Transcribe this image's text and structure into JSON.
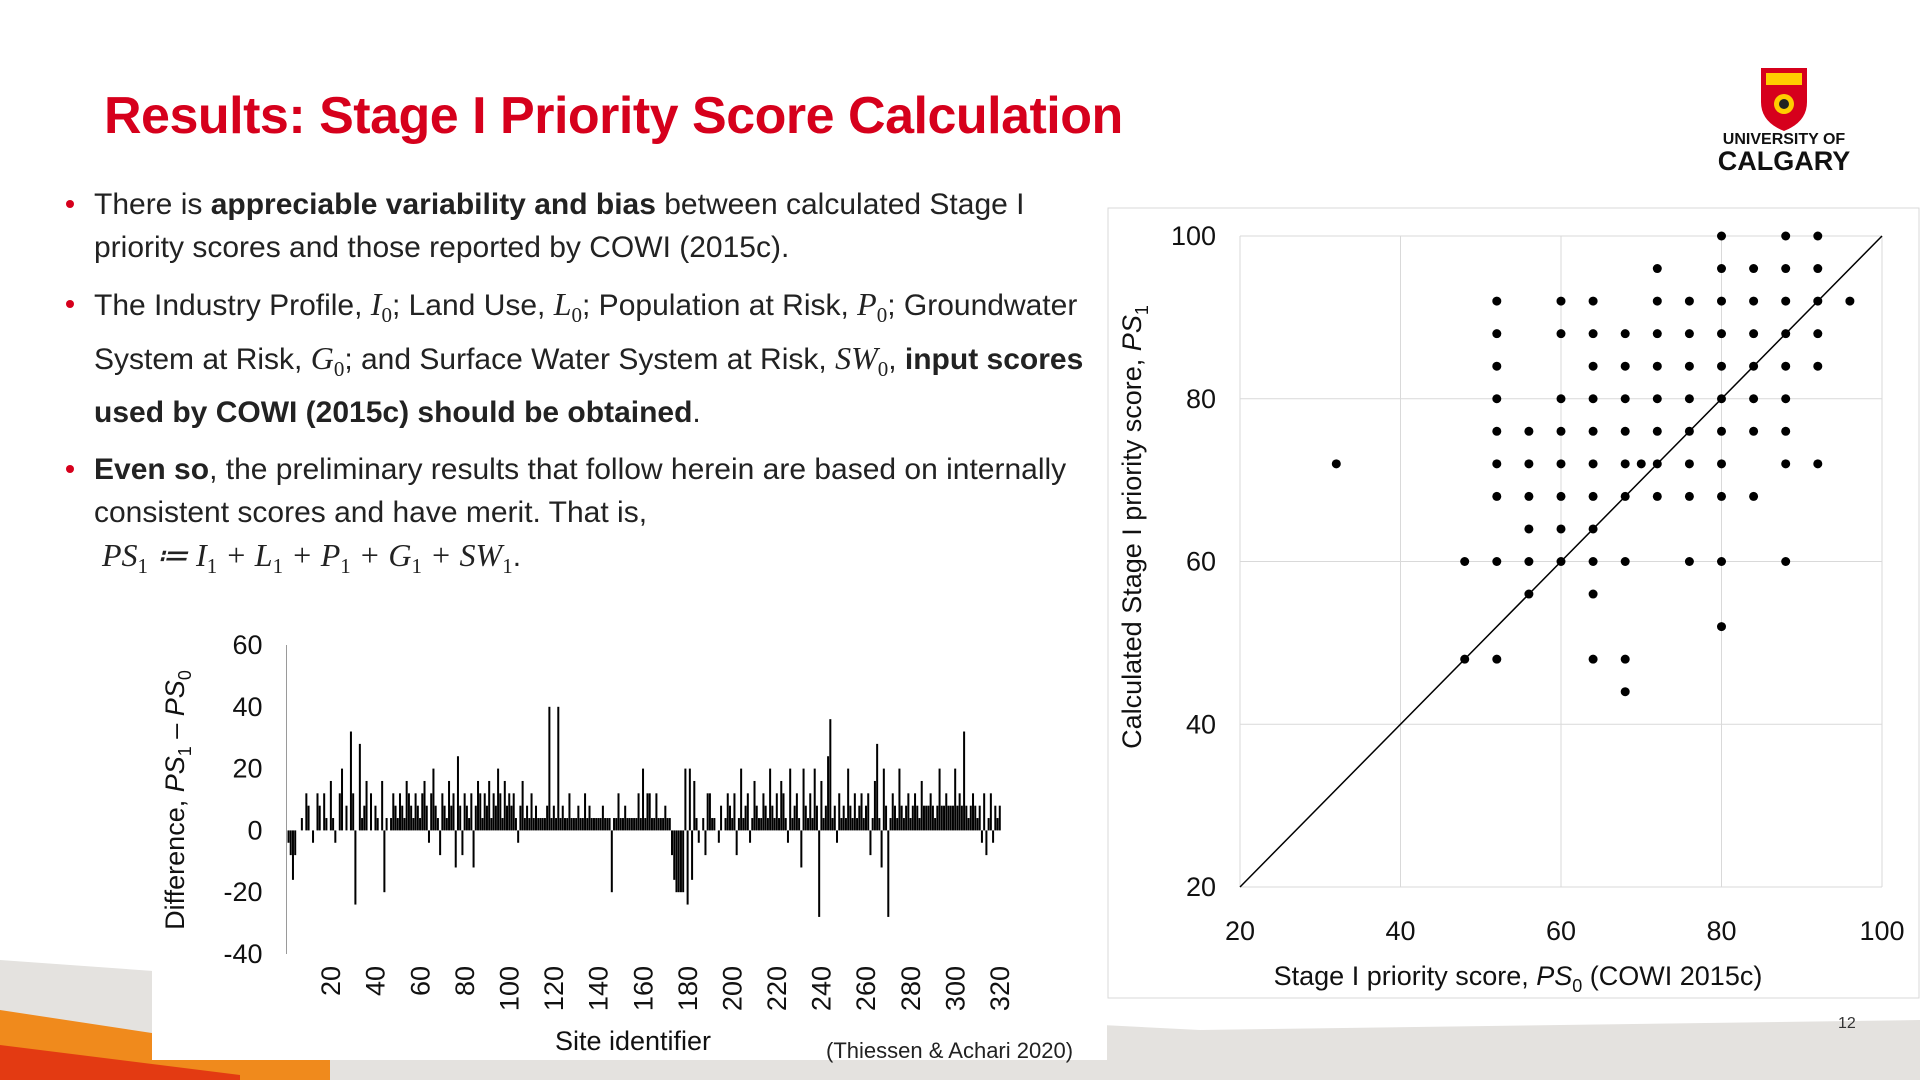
{
  "header": {
    "title": "Results: Stage I Priority Score Calculation",
    "logo_line1": "UNIVERSITY OF",
    "logo_line2": "CALGARY"
  },
  "bullets": [
    {
      "runs": [
        {
          "text": "There is "
        },
        {
          "text": "appreciable variability and bias",
          "style": "bold"
        },
        {
          "text": " between calculated Stage I priority scores and those reported by COWI (2015c)."
        }
      ]
    },
    {
      "runs": [
        {
          "text": "The Industry Profile, "
        },
        {
          "text": "I",
          "style": "math"
        },
        {
          "text": "0",
          "style": "sub"
        },
        {
          "text": "; Land Use, "
        },
        {
          "text": "L",
          "style": "math"
        },
        {
          "text": "0",
          "style": "sub"
        },
        {
          "text": "; Population at Risk, "
        },
        {
          "text": "P",
          "style": "math"
        },
        {
          "text": "0",
          "style": "sub"
        },
        {
          "text": "; Groundwater System at Risk, "
        },
        {
          "text": "G",
          "style": "math"
        },
        {
          "text": "0",
          "style": "sub"
        },
        {
          "text": "; and Surface Water System at Risk, "
        },
        {
          "text": "SW",
          "style": "math"
        },
        {
          "text": "0",
          "style": "sub"
        },
        {
          "text": ", "
        },
        {
          "text": "input scores used by COWI (2015c) should be obtained",
          "style": "bold"
        },
        {
          "text": "."
        }
      ]
    },
    {
      "runs": [
        {
          "text": "Even so",
          "style": "bold"
        },
        {
          "text": ", the preliminary results that follow herein are based on internally consistent scores and have merit. That is,"
        }
      ],
      "formula": [
        {
          "text": "PS",
          "style": "math"
        },
        {
          "text": "1",
          "style": "sub"
        },
        {
          "text": " ≔ I",
          "style": "math"
        },
        {
          "text": "1",
          "style": "sub"
        },
        {
          "text": " + L",
          "style": "math"
        },
        {
          "text": "1",
          "style": "sub"
        },
        {
          "text": " + P",
          "style": "math"
        },
        {
          "text": "1",
          "style": "sub"
        },
        {
          "text": " + G",
          "style": "math"
        },
        {
          "text": "1",
          "style": "sub"
        },
        {
          "text": " + SW",
          "style": "math"
        },
        {
          "text": "1",
          "style": "sub"
        },
        {
          "text": "."
        }
      ]
    }
  ],
  "citation": "(Thiessen & Achari 2020)",
  "page_number": "12",
  "chart_data": [
    {
      "type": "bar",
      "color": "#000000",
      "grid": false,
      "xlabel": [
        {
          "text": "Site identifier"
        }
      ],
      "ylabel": [
        {
          "text": "Difference, "
        },
        {
          "text": "PS",
          "style": "math"
        },
        {
          "text": "1",
          "style": "sub"
        },
        {
          "text": " – "
        },
        {
          "text": "PS",
          "style": "math"
        },
        {
          "text": "0",
          "style": "sub"
        }
      ],
      "xlim": [
        0,
        320
      ],
      "xticks": [
        20,
        40,
        60,
        80,
        100,
        120,
        140,
        160,
        180,
        200,
        220,
        240,
        260,
        280,
        300,
        320
      ],
      "ylim": [
        -40,
        60
      ],
      "yticks": [
        -40,
        -20,
        0,
        20,
        40,
        60
      ],
      "x": [
        1,
        2,
        3,
        4,
        5,
        6,
        7,
        8,
        9,
        10,
        11,
        12,
        13,
        14,
        15,
        16,
        17,
        18,
        19,
        20,
        21,
        22,
        23,
        24,
        25,
        26,
        27,
        28,
        29,
        30,
        31,
        32,
        33,
        34,
        35,
        36,
        37,
        38,
        39,
        40,
        41,
        42,
        43,
        44,
        45,
        46,
        47,
        48,
        49,
        50,
        51,
        52,
        53,
        54,
        55,
        56,
        57,
        58,
        59,
        60,
        61,
        62,
        63,
        64,
        65,
        66,
        67,
        68,
        69,
        70,
        71,
        72,
        73,
        74,
        75,
        76,
        77,
        78,
        79,
        80,
        81,
        82,
        83,
        84,
        85,
        86,
        87,
        88,
        89,
        90,
        91,
        92,
        93,
        94,
        95,
        96,
        97,
        98,
        99,
        100,
        101,
        102,
        103,
        104,
        105,
        106,
        107,
        108,
        109,
        110,
        111,
        112,
        113,
        114,
        115,
        116,
        117,
        118,
        119,
        120,
        121,
        122,
        123,
        124,
        125,
        126,
        127,
        128,
        129,
        130,
        131,
        132,
        133,
        134,
        135,
        136,
        137,
        138,
        139,
        140,
        141,
        142,
        143,
        144,
        145,
        146,
        147,
        148,
        149,
        150,
        151,
        152,
        153,
        154,
        155,
        156,
        157,
        158,
        159,
        160,
        161,
        162,
        163,
        164,
        165,
        166,
        167,
        168,
        169,
        170,
        171,
        172,
        173,
        174,
        175,
        176,
        177,
        178,
        179,
        180,
        181,
        182,
        183,
        184,
        185,
        186,
        187,
        188,
        189,
        190,
        191,
        192,
        193,
        194,
        195,
        196,
        197,
        198,
        199,
        200,
        201,
        202,
        203,
        204,
        205,
        206,
        207,
        208,
        209,
        210,
        211,
        212,
        213,
        214,
        215,
        216,
        217,
        218,
        219,
        220,
        221,
        222,
        223,
        224,
        225,
        226,
        227,
        228,
        229,
        230,
        231,
        232,
        233,
        234,
        235,
        236,
        237,
        238,
        239,
        240,
        241,
        242,
        243,
        244,
        245,
        246,
        247,
        248,
        249,
        250,
        251,
        252,
        253,
        254,
        255,
        256,
        257,
        258,
        259,
        260,
        261,
        262,
        263,
        264,
        265,
        266,
        267,
        268,
        269,
        270,
        271,
        272,
        273,
        274,
        275,
        276,
        277,
        278,
        279,
        280,
        281,
        282,
        283,
        284,
        285,
        286,
        287,
        288,
        289,
        290,
        291,
        292,
        293,
        294,
        295,
        296,
        297,
        298,
        299,
        300,
        301,
        302,
        303,
        304,
        305,
        306,
        307,
        308,
        309,
        310,
        311,
        312,
        313,
        314,
        315,
        316,
        317,
        318,
        319,
        320
      ],
      "values": [
        -4,
        -8,
        -16,
        -8,
        0,
        0,
        4,
        0,
        12,
        8,
        0,
        -4,
        0,
        12,
        8,
        0,
        12,
        4,
        0,
        16,
        4,
        -4,
        0,
        12,
        20,
        0,
        8,
        0,
        32,
        12,
        -24,
        0,
        28,
        4,
        8,
        16,
        0,
        12,
        0,
        8,
        4,
        0,
        16,
        -20,
        4,
        0,
        4,
        12,
        8,
        4,
        12,
        8,
        4,
        16,
        12,
        8,
        4,
        12,
        8,
        4,
        12,
        16,
        8,
        -4,
        12,
        20,
        8,
        4,
        -8,
        12,
        8,
        4,
        16,
        8,
        12,
        -12,
        24,
        8,
        -8,
        12,
        8,
        4,
        12,
        -12,
        8,
        16,
        12,
        4,
        12,
        8,
        16,
        4,
        12,
        8,
        20,
        12,
        4,
        16,
        8,
        12,
        8,
        12,
        4,
        -4,
        8,
        16,
        4,
        8,
        4,
        12,
        4,
        8,
        4,
        4,
        4,
        4,
        8,
        40,
        4,
        8,
        4,
        40,
        4,
        8,
        4,
        4,
        12,
        4,
        4,
        4,
        8,
        4,
        4,
        12,
        4,
        8,
        4,
        4,
        4,
        4,
        4,
        8,
        4,
        4,
        4,
        -20,
        4,
        4,
        12,
        4,
        4,
        8,
        4,
        4,
        4,
        4,
        4,
        12,
        4,
        20,
        4,
        12,
        12,
        4,
        4,
        12,
        4,
        4,
        4,
        8,
        4,
        4,
        -8,
        -16,
        -20,
        -20,
        -20,
        -20,
        20,
        -24,
        20,
        -16,
        16,
        4,
        -4,
        0,
        4,
        -8,
        12,
        12,
        4,
        4,
        0,
        -4,
        8,
        0,
        4,
        12,
        8,
        4,
        12,
        -8,
        4,
        20,
        4,
        8,
        12,
        -4,
        4,
        16,
        8,
        4,
        4,
        12,
        8,
        4,
        20,
        8,
        4,
        12,
        4,
        16,
        12,
        4,
        -4,
        20,
        4,
        8,
        12,
        4,
        -12,
        20,
        8,
        4,
        12,
        4,
        20,
        8,
        -28,
        16,
        4,
        8,
        24,
        36,
        4,
        8,
        -4,
        12,
        4,
        8,
        4,
        20,
        8,
        4,
        12,
        4,
        8,
        12,
        4,
        8,
        12,
        -8,
        4,
        16,
        28,
        4,
        -12,
        20,
        8,
        -28,
        4,
        12,
        8,
        4,
        20,
        8,
        4,
        8,
        12,
        4,
        8,
        12,
        8,
        4,
        16,
        8,
        8,
        8,
        12,
        8,
        4,
        8,
        20,
        8,
        8,
        12,
        8,
        8,
        8,
        20,
        8,
        12,
        8,
        32,
        8,
        4,
        8,
        12,
        8,
        4,
        8,
        -4,
        12,
        -8,
        4,
        12,
        -4,
        8,
        4,
        8
      ]
    },
    {
      "type": "scatter",
      "color": "#000000",
      "grid": true,
      "identity_line": true,
      "xlabel": [
        {
          "text": "Stage I priority score, "
        },
        {
          "text": "PS",
          "style": "math"
        },
        {
          "text": "0",
          "style": "sub"
        },
        {
          "text": " (COWI 2015c)"
        }
      ],
      "ylabel": [
        {
          "text": "Calculated Stage I priority score, "
        },
        {
          "text": "PS",
          "style": "math"
        },
        {
          "text": "1",
          "style": "sub"
        }
      ],
      "xlim": [
        20,
        100
      ],
      "xticks": [
        20,
        40,
        60,
        80,
        100
      ],
      "ylim": [
        20,
        100
      ],
      "yticks": [
        20,
        40,
        60,
        80,
        100
      ],
      "x": [
        32,
        48,
        48,
        52,
        52,
        52,
        52,
        52,
        52,
        52,
        52,
        52,
        56,
        56,
        56,
        56,
        56,
        56,
        60,
        60,
        60,
        60,
        60,
        60,
        60,
        60,
        64,
        64,
        64,
        64,
        64,
        64,
        64,
        64,
        64,
        64,
        64,
        68,
        68,
        68,
        68,
        68,
        68,
        68,
        68,
        68,
        70,
        72,
        72,
        72,
        72,
        72,
        72,
        72,
        72,
        76,
        76,
        76,
        76,
        76,
        76,
        76,
        76,
        80,
        80,
        80,
        80,
        80,
        80,
        80,
        80,
        80,
        80,
        80,
        84,
        84,
        84,
        84,
        84,
        84,
        84,
        88,
        88,
        88,
        88,
        88,
        88,
        88,
        88,
        88,
        92,
        92,
        92,
        92,
        92,
        92,
        96
      ],
      "values": [
        72,
        60,
        48,
        92,
        88,
        84,
        80,
        76,
        72,
        68,
        60,
        48,
        76,
        72,
        68,
        64,
        60,
        56,
        92,
        88,
        80,
        76,
        72,
        68,
        64,
        60,
        92,
        88,
        84,
        80,
        76,
        72,
        68,
        64,
        60,
        56,
        48,
        88,
        84,
        80,
        76,
        72,
        68,
        60,
        48,
        44,
        72,
        96,
        92,
        88,
        84,
        80,
        76,
        72,
        68,
        92,
        88,
        84,
        80,
        76,
        72,
        68,
        60,
        100,
        96,
        92,
        88,
        84,
        80,
        76,
        72,
        68,
        60,
        52,
        96,
        92,
        88,
        84,
        80,
        76,
        68,
        100,
        96,
        92,
        88,
        84,
        80,
        76,
        72,
        60,
        100,
        96,
        92,
        88,
        84,
        72,
        92
      ]
    }
  ]
}
